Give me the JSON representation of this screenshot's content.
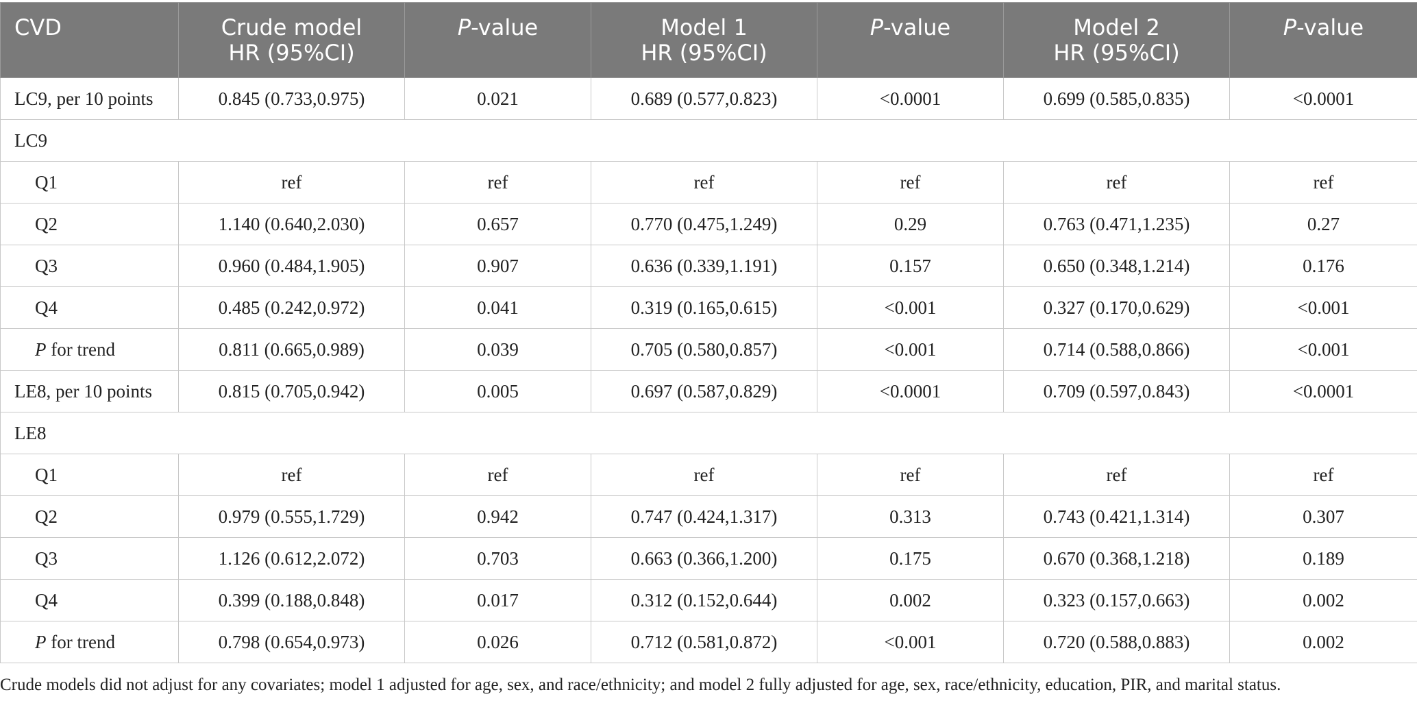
{
  "header": {
    "col0": "CVD",
    "col1_line1": "Crude model",
    "col1_line2": "HR (95%CI)",
    "col2_italic": "P",
    "col2_rest": "-value",
    "col3_line1": "Model 1",
    "col3_line2": "HR (95%CI)",
    "col4_italic": "P",
    "col4_rest": "-value",
    "col5_line1": "Model 2",
    "col5_line2": "HR (95%CI)",
    "col6_italic": "P",
    "col6_rest": "-value"
  },
  "rows": {
    "lc9_per10": [
      "LC9, per 10 points",
      "0.845 (0.733,0.975)",
      "0.021",
      "0.689 (0.577,0.823)",
      "<0.0001",
      "0.699 (0.585,0.835)",
      "<0.0001"
    ],
    "lc9_section": "LC9",
    "lc9_q1": [
      "Q1",
      "ref",
      "ref",
      "ref",
      "ref",
      "ref",
      "ref"
    ],
    "lc9_q2": [
      "Q2",
      "1.140 (0.640,2.030)",
      "0.657",
      "0.770 (0.475,1.249)",
      "0.29",
      "0.763 (0.471,1.235)",
      "0.27"
    ],
    "lc9_q3": [
      "Q3",
      "0.960 (0.484,1.905)",
      "0.907",
      "0.636 (0.339,1.191)",
      "0.157",
      "0.650 (0.348,1.214)",
      "0.176"
    ],
    "lc9_q4": [
      "Q4",
      "0.485 (0.242,0.972)",
      "0.041",
      "0.319 (0.165,0.615)",
      "<0.001",
      "0.327 (0.170,0.629)",
      "<0.001"
    ],
    "lc9_trend": [
      "P",
      " for trend",
      "0.811 (0.665,0.989)",
      "0.039",
      "0.705 (0.580,0.857)",
      "<0.001",
      "0.714 (0.588,0.866)",
      "<0.001"
    ],
    "le8_per10": [
      "LE8, per 10 points",
      "0.815 (0.705,0.942)",
      "0.005",
      "0.697 (0.587,0.829)",
      "<0.0001",
      "0.709 (0.597,0.843)",
      "<0.0001"
    ],
    "le8_section": "LE8",
    "le8_q1": [
      "Q1",
      "ref",
      "ref",
      "ref",
      "ref",
      "ref",
      "ref"
    ],
    "le8_q2": [
      "Q2",
      "0.979 (0.555,1.729)",
      "0.942",
      "0.747 (0.424,1.317)",
      "0.313",
      "0.743 (0.421,1.314)",
      "0.307"
    ],
    "le8_q3": [
      "Q3",
      "1.126 (0.612,2.072)",
      "0.703",
      "0.663 (0.366,1.200)",
      "0.175",
      "0.670 (0.368,1.218)",
      "0.189"
    ],
    "le8_q4": [
      "Q4",
      "0.399 (0.188,0.848)",
      "0.017",
      "0.312 (0.152,0.644)",
      "0.002",
      "0.323 (0.157,0.663)",
      "0.002"
    ],
    "le8_trend": [
      "P",
      " for trend",
      "0.798 (0.654,0.973)",
      "0.026",
      "0.712 (0.581,0.872)",
      "<0.001",
      "0.720 (0.588,0.883)",
      "0.002"
    ]
  },
  "footnote": "Crude models did not adjust for any covariates; model 1 adjusted for age, sex, and race/ethnicity; and model 2 fully adjusted for age, sex, race/ethnicity, education, PIR, and marital status.",
  "colors": {
    "header_bg": "#7a7a7a",
    "header_text": "#ffffff",
    "grid": "#c8c8c8",
    "body_text": "#222222"
  }
}
